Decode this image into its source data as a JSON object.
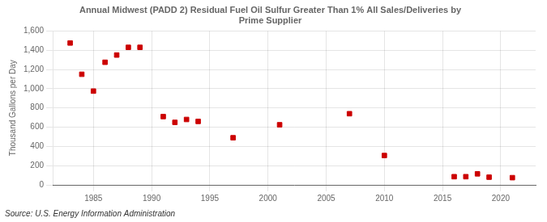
{
  "chart_data": {
    "type": "scatter",
    "title": "Annual Midwest (PADD 2) Residual Fuel Oil Sulfur Greater Than 1% All Sales/Deliveries by\nPrime Supplier",
    "ylabel": "Thousand Gallons per Day",
    "annotations": [
      "Source: U.S. Energy Information Administration"
    ],
    "x": [
      1983,
      1984,
      1985,
      1986,
      1987,
      1988,
      1989,
      1991,
      1992,
      1993,
      1994,
      1997,
      2001,
      2007,
      2010,
      2016,
      2017,
      2018,
      2019,
      2021
    ],
    "values": [
      1475,
      1150,
      975,
      1275,
      1350,
      1430,
      1430,
      710,
      650,
      680,
      660,
      490,
      625,
      740,
      305,
      85,
      85,
      115,
      80,
      75
    ],
    "color": "#cc0000",
    "marker": "square",
    "xlim": [
      1981.5,
      2023
    ],
    "ylim": [
      0,
      1600
    ],
    "xticks": [
      1985,
      1990,
      1995,
      2000,
      2005,
      2010,
      2015,
      2020
    ],
    "yticks": [
      0,
      200,
      400,
      600,
      800,
      {
        "value": 1000,
        "label": "1,000"
      },
      {
        "value": 1200,
        "label": "1,200"
      },
      {
        "value": 1400,
        "label": "1,400"
      },
      {
        "value": 1600,
        "label": "1,600"
      }
    ],
    "grid": true
  }
}
